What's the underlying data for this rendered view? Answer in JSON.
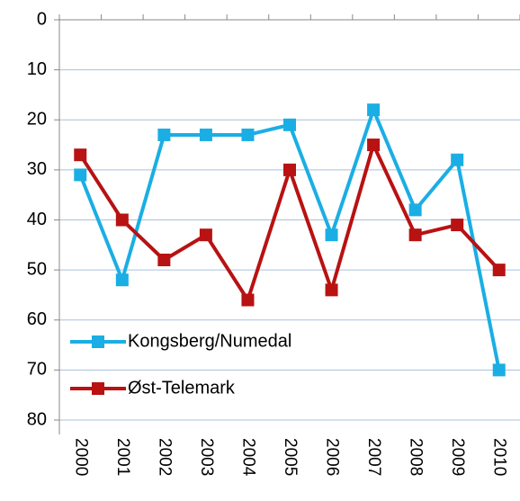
{
  "chart_data": {
    "type": "line",
    "categories": [
      "2000",
      "2001",
      "2002",
      "2003",
      "2004",
      "2005",
      "2006",
      "2007",
      "2008",
      "2009",
      "2010"
    ],
    "series": [
      {
        "name": "Kongsberg/Numedal",
        "color": "#1aaee4",
        "values": [
          31,
          52,
          23,
          23,
          23,
          21,
          43,
          18,
          38,
          28,
          70
        ]
      },
      {
        "name": "Øst-Telemark",
        "color": "#b81212",
        "values": [
          27,
          40,
          48,
          43,
          56,
          30,
          54,
          25,
          43,
          41,
          50
        ]
      }
    ],
    "ylim": [
      0,
      80
    ],
    "yticks": [
      0,
      10,
      20,
      30,
      40,
      50,
      60,
      70,
      80
    ],
    "y_inverted": true,
    "grid": true,
    "legend": "lower left"
  }
}
